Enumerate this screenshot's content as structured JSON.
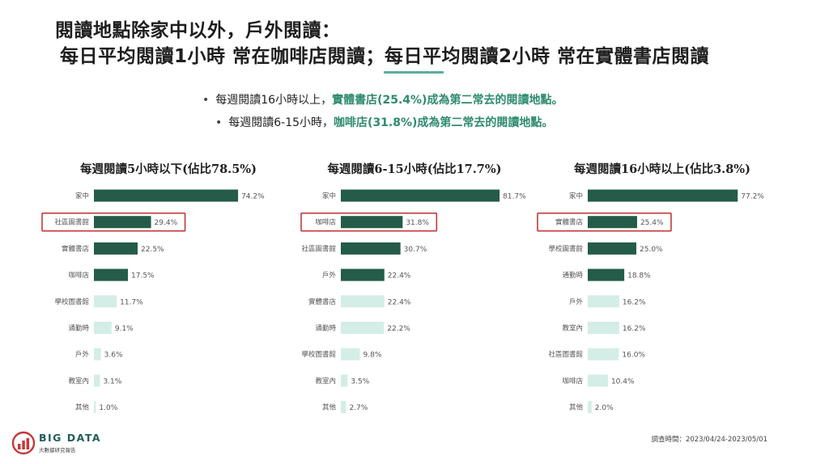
{
  "title": {
    "line1": "閱讀地點除家中以外，戶外閱讀：",
    "line2": "每日平均閱讀1小時  常在咖啡店閱讀；每日平均閱讀2小時  常在實體書店閱讀"
  },
  "bullets": [
    {
      "plain": "每週閱讀16小時以上，",
      "highlight": "實體書店(25.4%)成為第二常去的閱讀地點。"
    },
    {
      "plain": "每週閱讀6-15小時，",
      "highlight": "咖啡店(31.8%)成為第二常去的閱讀地點。"
    }
  ],
  "colors": {
    "dark_bar": "#245c49",
    "light_bar": "#d4ede7",
    "highlight_box": "#c4383a",
    "accent": "#2e8b6e"
  },
  "chart_data": [
    {
      "type": "bar",
      "orientation": "horizontal",
      "title": "每週閱讀5小時以下(佔比78.5%)",
      "categories": [
        "家中",
        "社區圖書館",
        "實體書店",
        "咖啡店",
        "學校圖書館",
        "通勤時",
        "戶外",
        "教室內",
        "其他"
      ],
      "values": [
        74.2,
        29.4,
        22.5,
        17.5,
        11.7,
        9.1,
        3.6,
        3.1,
        1.0
      ],
      "value_labels": [
        "74.2%",
        "29.4%",
        "22.5%",
        "17.5%",
        "11.7%",
        "9.1%",
        "3.6%",
        "3.1%",
        "1.0%"
      ],
      "dark_count": 4,
      "highlight_index": 1
    },
    {
      "type": "bar",
      "orientation": "horizontal",
      "title": "每週閱讀6-15小時(佔比17.7%)",
      "categories": [
        "家中",
        "咖啡店",
        "社區圖書館",
        "戶外",
        "實體書店",
        "通勤時",
        "學校圖書館",
        "教室內",
        "其他"
      ],
      "values": [
        81.7,
        31.8,
        30.7,
        22.4,
        22.4,
        22.2,
        9.8,
        3.5,
        2.7
      ],
      "value_labels": [
        "81.7%",
        "31.8%",
        "30.7%",
        "22.4%",
        "22.4%",
        "22.2%",
        "9.8%",
        "3.5%",
        "2.7%"
      ],
      "dark_count": 4,
      "highlight_index": 1
    },
    {
      "type": "bar",
      "orientation": "horizontal",
      "title": "每週閱讀16小時以上(佔比3.8%)",
      "categories": [
        "家中",
        "實體書店",
        "學校圖書館",
        "通勤時",
        "戶外",
        "教室內",
        "社區圖書館",
        "咖啡店",
        "其他"
      ],
      "values": [
        77.2,
        25.4,
        25.0,
        18.8,
        16.2,
        16.2,
        16.0,
        10.4,
        2.0
      ],
      "value_labels": [
        "77.2%",
        "25.4%",
        "25.0%",
        "18.8%",
        "16.2%",
        "16.2%",
        "16.0%",
        "10.4%",
        "2.0%"
      ],
      "dark_count": 4,
      "highlight_index": 1
    }
  ],
  "logo": {
    "name": "BIG DATA",
    "sub": "大數據研究報告",
    "icon": "bar-chart-logo-icon"
  },
  "footnote": "調查時間：2023/04/24-2023/05/01"
}
